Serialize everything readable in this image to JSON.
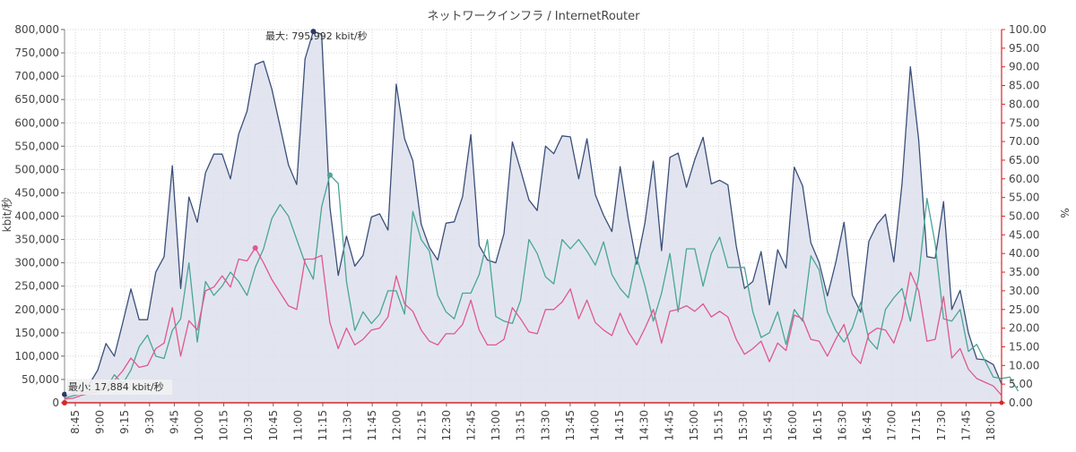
{
  "chart_data": {
    "type": "line",
    "title": "ネットワークインフラ / InternetRouter",
    "ylabel_left": "kbit/秒",
    "ylabel_right": "%",
    "ylim_left": [
      0,
      800000
    ],
    "ylim_right": [
      0,
      100
    ],
    "yticks_left": [
      "0",
      "50,000",
      "100,000",
      "150,000",
      "200,000",
      "250,000",
      "300,000",
      "350,000",
      "400,000",
      "450,000",
      "500,000",
      "550,000",
      "600,000",
      "650,000",
      "700,000",
      "750,000",
      "800,000"
    ],
    "yticks_right": [
      "0.00",
      "5.00",
      "10.00",
      "15.00",
      "20.00",
      "25.00",
      "30.00",
      "35.00",
      "40.00",
      "45.00",
      "50.00",
      "55.00",
      "60.00",
      "65.00",
      "70.00",
      "75.00",
      "80.00",
      "85.00",
      "90.00",
      "95.00",
      "100.00"
    ],
    "xtick_labels": [
      "8:45",
      "9:00",
      "9:15",
      "9:30",
      "9:45",
      "10:00",
      "10:15",
      "10:30",
      "10:45",
      "11:00",
      "11:15",
      "11:30",
      "11:45",
      "12:00",
      "12:15",
      "12:30",
      "12:45",
      "13:00",
      "13:15",
      "13:30",
      "13:45",
      "14:00",
      "14:15",
      "14:30",
      "14:45",
      "15:00",
      "15:15",
      "15:30",
      "15:45",
      "16:00",
      "16:15",
      "16:30",
      "16:45",
      "17:00",
      "17:15",
      "17:30",
      "17:45",
      "18:00"
    ],
    "grid": true,
    "annotations": {
      "max_label": "最大: 795,992 kbit/秒",
      "min_label": "最小: 17,884 kbit/秒"
    },
    "series": [
      {
        "axis": "left",
        "color": "#3b4f7a",
        "fill": "#dde1ec",
        "values": [
          17884,
          20000,
          28000,
          40000,
          70000,
          127000,
          100000,
          170000,
          244000,
          178000,
          178000,
          280000,
          313000,
          508000,
          245000,
          441000,
          387000,
          493000,
          533000,
          533000,
          480000,
          576000,
          625000,
          725000,
          732000,
          672000,
          592000,
          510000,
          468000,
          737000,
          795992,
          790000,
          420000,
          273000,
          357000,
          293000,
          316000,
          398000,
          405000,
          370000,
          683000,
          566000,
          519000,
          383000,
          333000,
          306000,
          385000,
          388000,
          442000,
          575000,
          337000,
          306000,
          300000,
          363000,
          559000,
          499000,
          435000,
          412000,
          550000,
          534000,
          572000,
          570000,
          480000,
          566000,
          446000,
          402000,
          367000,
          506000,
          393000,
          297000,
          386000,
          518000,
          326000,
          526000,
          535000,
          462000,
          521000,
          569000,
          469000,
          477000,
          467000,
          336000,
          245000,
          260000,
          324000,
          210000,
          328000,
          289000,
          505000,
          465000,
          343000,
          301000,
          229000,
          300000,
          387000,
          231000,
          194000,
          346000,
          383000,
          404000,
          302000,
          470000,
          720000,
          565000,
          313000,
          310000,
          431000,
          200000,
          241000,
          150000,
          94000,
          92000,
          82000,
          40000
        ]
      },
      {
        "axis": "left",
        "color": "#4aa596",
        "values": [
          10000,
          15000,
          20000,
          25000,
          30000,
          30000,
          60000,
          40000,
          70000,
          120000,
          145000,
          100000,
          95000,
          155000,
          180000,
          300000,
          130000,
          260000,
          230000,
          250000,
          280000,
          260000,
          230000,
          290000,
          330000,
          395000,
          425000,
          400000,
          350000,
          300000,
          265000,
          420000,
          488000,
          470000,
          260000,
          155000,
          195000,
          170000,
          190000,
          240000,
          240000,
          190000,
          410000,
          350000,
          325000,
          230000,
          195000,
          180000,
          235000,
          235000,
          275000,
          350000,
          185000,
          175000,
          170000,
          220000,
          350000,
          320000,
          270000,
          255000,
          350000,
          330000,
          350000,
          325000,
          295000,
          345000,
          275000,
          245000,
          225000,
          312000,
          250000,
          175000,
          235000,
          320000,
          195000,
          330000,
          330000,
          250000,
          320000,
          355000,
          290000,
          290000,
          290000,
          195000,
          140000,
          150000,
          195000,
          125000,
          200000,
          175000,
          315000,
          285000,
          195000,
          155000,
          130000,
          160000,
          215000,
          135000,
          115000,
          200000,
          225000,
          245000,
          175000,
          270000,
          438000,
          340000,
          180000,
          175000,
          200000,
          110000,
          125000,
          90000,
          55000,
          52000,
          55000,
          25000
        ]
      },
      {
        "axis": "right",
        "color": "#e0588c",
        "values": [
          1.0,
          1.2,
          2.0,
          2.5,
          3.0,
          4.0,
          6.0,
          8.5,
          12.0,
          9.5,
          10.0,
          14.5,
          16.0,
          25.5,
          12.5,
          22.0,
          19.5,
          30.0,
          31.0,
          34.0,
          31.0,
          38.5,
          38.0,
          41.5,
          37.5,
          33.0,
          29.5,
          26.0,
          25.0,
          38.5,
          38.5,
          39.5,
          21.5,
          14.5,
          20.0,
          15.5,
          17.0,
          19.5,
          20.0,
          23.0,
          34.0,
          26.5,
          24.5,
          19.5,
          16.5,
          15.5,
          18.5,
          18.5,
          21.0,
          27.5,
          19.5,
          15.5,
          15.5,
          17.0,
          25.5,
          22.5,
          19.0,
          18.5,
          25.0,
          25.0,
          27.0,
          30.5,
          22.5,
          27.5,
          21.5,
          19.5,
          18.0,
          24.0,
          19.0,
          15.5,
          20.0,
          25.0,
          16.0,
          24.5,
          25.0,
          26.0,
          24.5,
          26.5,
          23.0,
          24.5,
          23.0,
          17.0,
          13.0,
          14.5,
          16.5,
          11.0,
          16.0,
          14.0,
          23.5,
          22.5,
          17.0,
          16.5,
          12.5,
          17.0,
          21.0,
          13.0,
          10.5,
          18.5,
          20.0,
          19.5,
          16.0,
          22.5,
          35.0,
          30.0,
          16.5,
          17.0,
          28.5,
          12.0,
          14.5,
          9.0,
          6.5,
          5.5,
          4.5,
          2.0
        ]
      }
    ],
    "markers": [
      {
        "series": 0,
        "index": 30,
        "color": "#2b3a66"
      },
      {
        "series": 1,
        "index": 32,
        "color": "#4aa596"
      },
      {
        "series": 2,
        "index": 23,
        "color": "#e0588c"
      },
      {
        "series": 0,
        "index": 0,
        "color": "#2b3a66"
      }
    ]
  }
}
